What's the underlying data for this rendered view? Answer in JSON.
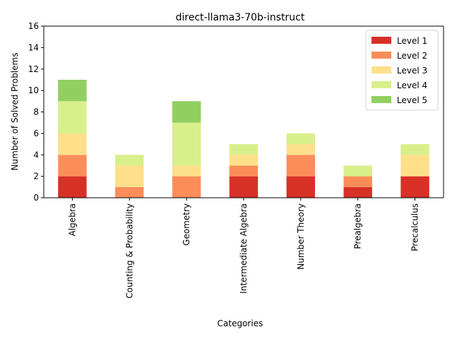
{
  "chart_data": {
    "type": "bar",
    "stacked": true,
    "title": "direct-llama3-70b-instruct",
    "xlabel": "Categories",
    "ylabel": "Number of Solved Problems",
    "ylim": [
      0,
      16
    ],
    "yticks": [
      0,
      2,
      4,
      6,
      8,
      10,
      12,
      14,
      16
    ],
    "grid": false,
    "legend_position": "top-right",
    "categories": [
      "Algebra",
      "Counting & Probability",
      "Geometry",
      "Intermediate Algebra",
      "Number Theory",
      "Prealgebra",
      "Precalculus"
    ],
    "series": [
      {
        "name": "Level 1",
        "color": "#d73027",
        "values": [
          2,
          0,
          0,
          2,
          2,
          1,
          2
        ]
      },
      {
        "name": "Level 2",
        "color": "#fc8d59",
        "values": [
          2,
          1,
          2,
          1,
          2,
          1,
          0
        ]
      },
      {
        "name": "Level 3",
        "color": "#fee08b",
        "values": [
          2,
          2,
          1,
          1,
          1,
          0,
          2
        ]
      },
      {
        "name": "Level 4",
        "color": "#d9ef8b",
        "values": [
          3,
          1,
          4,
          1,
          1,
          1,
          1
        ]
      },
      {
        "name": "Level 5",
        "color": "#91cf60",
        "values": [
          2,
          0,
          2,
          0,
          0,
          0,
          0
        ]
      }
    ]
  }
}
